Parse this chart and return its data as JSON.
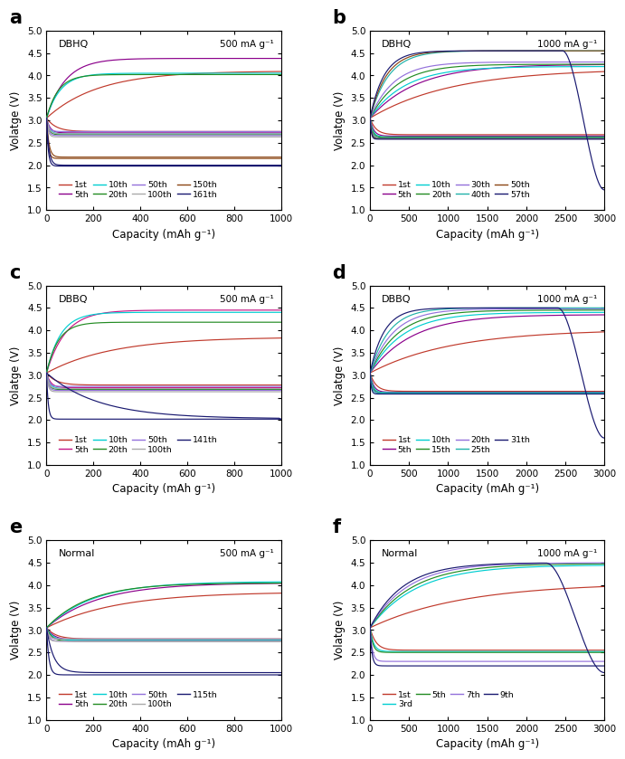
{
  "panels": [
    {
      "label": "a",
      "title": "DBHQ",
      "rate": "500 mA g⁻¹",
      "xlim": [
        0,
        1000
      ],
      "ylim": [
        1.0,
        5.0
      ],
      "xticks": [
        0,
        200,
        400,
        600,
        800,
        1000
      ],
      "legend_entries": [
        "1st",
        "5th",
        "10th",
        "20th",
        "50th",
        "100th",
        "150th",
        "161th"
      ],
      "curves": [
        {
          "color": "#c0392b",
          "dv": 2.75,
          "cv": 4.1,
          "cap": 1000,
          "tau_d": 0.04,
          "tau_c": 0.22,
          "terminal": false
        },
        {
          "color": "#8b008b",
          "dv": 2.72,
          "cv": 4.38,
          "cap": 1000,
          "tau_d": 0.015,
          "tau_c": 0.08,
          "terminal": false
        },
        {
          "color": "#00ced1",
          "dv": 2.7,
          "cv": 4.05,
          "cap": 1000,
          "tau_d": 0.012,
          "tau_c": 0.06,
          "terminal": false
        },
        {
          "color": "#228b22",
          "dv": 2.68,
          "cv": 4.02,
          "cap": 1000,
          "tau_d": 0.01,
          "tau_c": 0.05,
          "terminal": false
        },
        {
          "color": "#9370db",
          "dv": 2.66,
          "cv": 2.75,
          "cap": 1000,
          "tau_d": 0.008,
          "tau_c": 0.01,
          "terminal": false
        },
        {
          "color": "#a9a9a9",
          "dv": 2.63,
          "cv": 2.7,
          "cap": 1000,
          "tau_d": 0.007,
          "tau_c": 0.01,
          "terminal": false
        },
        {
          "color": "#8b4513",
          "dv": 2.15,
          "cv": 2.18,
          "cap": 1000,
          "tau_d": 0.007,
          "tau_c": 0.01,
          "terminal": false
        },
        {
          "color": "#191970",
          "dv": 1.98,
          "cv": 2.0,
          "cap": 1000,
          "tau_d": 0.007,
          "tau_c": 0.01,
          "terminal": false
        }
      ]
    },
    {
      "label": "b",
      "title": "DBHQ",
      "rate": "1000 mA g⁻¹",
      "xlim": [
        0,
        3000
      ],
      "ylim": [
        1.0,
        5.0
      ],
      "xticks": [
        0,
        500,
        1000,
        1500,
        2000,
        2500,
        3000
      ],
      "legend_entries": [
        "1st",
        "5th",
        "10th",
        "20th",
        "30th",
        "40th",
        "50th",
        "57th"
      ],
      "curves": [
        {
          "color": "#c0392b",
          "dv": 2.68,
          "cv": 4.15,
          "cap": 3000,
          "tau_d": 0.025,
          "tau_c": 0.35,
          "terminal": false
        },
        {
          "color": "#8b008b",
          "dv": 2.65,
          "cv": 4.25,
          "cap": 3000,
          "tau_d": 0.015,
          "tau_c": 0.2,
          "terminal": false
        },
        {
          "color": "#00ced1",
          "dv": 2.63,
          "cv": 4.2,
          "cap": 3000,
          "tau_d": 0.012,
          "tau_c": 0.15,
          "terminal": false
        },
        {
          "color": "#228b22",
          "dv": 2.62,
          "cv": 4.25,
          "cap": 3000,
          "tau_d": 0.01,
          "tau_c": 0.12,
          "terminal": false
        },
        {
          "color": "#9370db",
          "dv": 2.6,
          "cv": 4.3,
          "cap": 3000,
          "tau_d": 0.008,
          "tau_c": 0.1,
          "terminal": false
        },
        {
          "color": "#20b2aa",
          "dv": 2.6,
          "cv": 4.55,
          "cap": 3000,
          "tau_d": 0.007,
          "tau_c": 0.08,
          "terminal": false
        },
        {
          "color": "#8b4513",
          "dv": 2.59,
          "cv": 4.55,
          "cap": 3000,
          "tau_d": 0.006,
          "tau_c": 0.07,
          "terminal": false
        },
        {
          "color": "#191970",
          "dv": 2.58,
          "cv": 4.55,
          "cap": 3000,
          "tau_d": 0.005,
          "tau_c": 0.06,
          "terminal": true,
          "drop_at": 0.82,
          "drop_to": 1.45
        }
      ]
    },
    {
      "label": "c",
      "title": "DBBQ",
      "rate": "500 mA g⁻¹",
      "xlim": [
        0,
        1000
      ],
      "ylim": [
        1.0,
        5.0
      ],
      "xticks": [
        0,
        200,
        400,
        600,
        800,
        1000
      ],
      "legend_entries": [
        "1st",
        "5th",
        "10th",
        "20th",
        "50th",
        "100th",
        "141th"
      ],
      "curves": [
        {
          "color": "#c0392b",
          "dv": 2.78,
          "cv": 3.85,
          "cap": 1000,
          "tau_d": 0.04,
          "tau_c": 0.28,
          "terminal": false
        },
        {
          "color": "#c71585",
          "dv": 2.72,
          "cv": 4.45,
          "cap": 1000,
          "tau_d": 0.018,
          "tau_c": 0.08,
          "terminal": false
        },
        {
          "color": "#00ced1",
          "dv": 2.7,
          "cv": 4.4,
          "cap": 1000,
          "tau_d": 0.014,
          "tau_c": 0.06,
          "terminal": false
        },
        {
          "color": "#228b22",
          "dv": 2.68,
          "cv": 4.18,
          "cap": 1000,
          "tau_d": 0.01,
          "tau_c": 0.05,
          "terminal": false
        },
        {
          "color": "#9370db",
          "dv": 2.66,
          "cv": 2.75,
          "cap": 1000,
          "tau_d": 0.008,
          "tau_c": 0.01,
          "terminal": false
        },
        {
          "color": "#a9a9a9",
          "dv": 2.63,
          "cv": 2.7,
          "cap": 1000,
          "tau_d": 0.007,
          "tau_c": 0.01,
          "terminal": false
        },
        {
          "color": "#191970",
          "dv": 2.02,
          "cv": 2.03,
          "cap": 1000,
          "tau_d": 0.007,
          "tau_c": 0.22,
          "terminal": true,
          "drop_at": 0.99,
          "drop_to": 2.02
        }
      ]
    },
    {
      "label": "d",
      "title": "DBBQ",
      "rate": "1000 mA g⁻¹",
      "xlim": [
        0,
        3000
      ],
      "ylim": [
        1.0,
        5.0
      ],
      "xticks": [
        0,
        500,
        1000,
        1500,
        2000,
        2500,
        3000
      ],
      "legend_entries": [
        "1st",
        "5th",
        "10th",
        "15th",
        "20th",
        "25th",
        "31th"
      ],
      "curves": [
        {
          "color": "#c0392b",
          "dv": 2.64,
          "cv": 4.02,
          "cap": 3000,
          "tau_d": 0.025,
          "tau_c": 0.35,
          "terminal": false
        },
        {
          "color": "#8b008b",
          "dv": 2.62,
          "cv": 4.35,
          "cap": 3000,
          "tau_d": 0.015,
          "tau_c": 0.18,
          "terminal": false
        },
        {
          "color": "#00ced1",
          "dv": 2.61,
          "cv": 4.4,
          "cap": 3000,
          "tau_d": 0.012,
          "tau_c": 0.14,
          "terminal": false
        },
        {
          "color": "#228b22",
          "dv": 2.6,
          "cv": 4.45,
          "cap": 3000,
          "tau_d": 0.01,
          "tau_c": 0.12,
          "terminal": false
        },
        {
          "color": "#9370db",
          "dv": 2.6,
          "cv": 4.48,
          "cap": 3000,
          "tau_d": 0.008,
          "tau_c": 0.1,
          "terminal": false
        },
        {
          "color": "#20b2aa",
          "dv": 2.6,
          "cv": 4.5,
          "cap": 3000,
          "tau_d": 0.007,
          "tau_c": 0.08,
          "terminal": false
        },
        {
          "color": "#191970",
          "dv": 2.58,
          "cv": 4.5,
          "cap": 3000,
          "tau_d": 0.005,
          "tau_c": 0.06,
          "terminal": true,
          "drop_at": 0.8,
          "drop_to": 1.6
        }
      ]
    },
    {
      "label": "e",
      "title": "Normal",
      "rate": "500 mA g⁻¹",
      "xlim": [
        0,
        1000
      ],
      "ylim": [
        1.0,
        5.0
      ],
      "xticks": [
        0,
        200,
        400,
        600,
        800,
        1000
      ],
      "legend_entries": [
        "1st",
        "5th",
        "10th",
        "20th",
        "50th",
        "100th",
        "115th"
      ],
      "curves": [
        {
          "color": "#c0392b",
          "dv": 2.8,
          "cv": 3.85,
          "cap": 1000,
          "tau_d": 0.04,
          "tau_c": 0.3,
          "terminal": false
        },
        {
          "color": "#8b008b",
          "dv": 2.78,
          "cv": 4.05,
          "cap": 1000,
          "tau_d": 0.03,
          "tau_c": 0.22,
          "terminal": false
        },
        {
          "color": "#00ced1",
          "dv": 2.77,
          "cv": 4.08,
          "cap": 1000,
          "tau_d": 0.025,
          "tau_c": 0.2,
          "terminal": false
        },
        {
          "color": "#228b22",
          "dv": 2.75,
          "cv": 4.05,
          "cap": 1000,
          "tau_d": 0.022,
          "tau_c": 0.18,
          "terminal": false
        },
        {
          "color": "#9370db",
          "dv": 2.75,
          "cv": 2.8,
          "cap": 1000,
          "tau_d": 0.01,
          "tau_c": 0.01,
          "terminal": false
        },
        {
          "color": "#a9a9a9",
          "dv": 2.75,
          "cv": 2.8,
          "cap": 1000,
          "tau_d": 0.008,
          "tau_c": 0.01,
          "terminal": false
        },
        {
          "color": "#191970",
          "dv": 2.0,
          "cv": 2.05,
          "cap": 1000,
          "tau_d": 0.01,
          "tau_c": 0.03,
          "terminal": false
        }
      ]
    },
    {
      "label": "f",
      "title": "Normal",
      "rate": "1000 mA g⁻¹",
      "xlim": [
        0,
        3000
      ],
      "ylim": [
        1.0,
        5.0
      ],
      "xticks": [
        0,
        500,
        1000,
        1500,
        2000,
        2500,
        3000
      ],
      "legend_entries": [
        "1st",
        "3rd",
        "5th",
        "7th",
        "9th"
      ],
      "curves": [
        {
          "color": "#c0392b",
          "dv": 2.55,
          "cv": 4.05,
          "cap": 3000,
          "tau_d": 0.025,
          "tau_c": 0.4,
          "terminal": false
        },
        {
          "color": "#00ced1",
          "dv": 2.52,
          "cv": 4.45,
          "cap": 3000,
          "tau_d": 0.015,
          "tau_c": 0.2,
          "terminal": false
        },
        {
          "color": "#228b22",
          "dv": 2.5,
          "cv": 4.48,
          "cap": 3000,
          "tau_d": 0.012,
          "tau_c": 0.18,
          "terminal": false
        },
        {
          "color": "#9370db",
          "dv": 2.3,
          "cv": 4.5,
          "cap": 3000,
          "tau_d": 0.01,
          "tau_c": 0.16,
          "terminal": false
        },
        {
          "color": "#191970",
          "dv": 2.2,
          "cv": 4.5,
          "cap": 3000,
          "tau_d": 0.008,
          "tau_c": 0.14,
          "terminal": true,
          "drop_at": 0.75,
          "drop_to": 2.05
        }
      ]
    }
  ],
  "ylabel": "Volatge (V)",
  "xlabel": "Capacity (mAh g⁻¹)",
  "yticks": [
    1.0,
    1.5,
    2.0,
    2.5,
    3.0,
    3.5,
    4.0,
    4.5,
    5.0
  ],
  "axis_label_fontsize": 8.5,
  "tick_fontsize": 7.5,
  "legend_fontsize": 6.8
}
